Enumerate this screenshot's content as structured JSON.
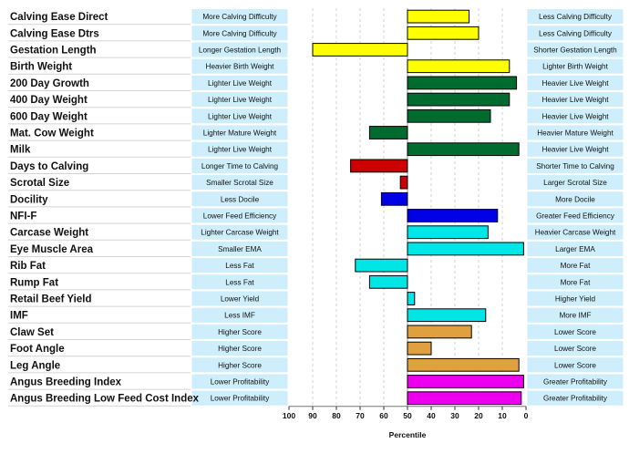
{
  "chart_data": {
    "type": "bar",
    "orientation": "horizontal",
    "xlabel": "Percentile",
    "xlim": [
      100,
      0
    ],
    "x_ticks": [
      "100",
      "90",
      "80",
      "70",
      "60",
      "50",
      "40",
      "30",
      "20",
      "10",
      "0"
    ],
    "baseline": 50,
    "grid": true,
    "rows": [
      {
        "trait": "Calving Ease Direct",
        "left": "More Calving Difficulty",
        "right": "Less Calving Difficulty",
        "value": 24,
        "color": "#ffff00"
      },
      {
        "trait": "Calving Ease Dtrs",
        "left": "More Calving Difficulty",
        "right": "Less Calving Difficulty",
        "value": 20,
        "color": "#ffff00"
      },
      {
        "trait": "Gestation Length",
        "left": "Longer Gestation Length",
        "right": "Shorter Gestation Length",
        "value": 90,
        "color": "#ffff00"
      },
      {
        "trait": "Birth Weight",
        "left": "Heavier Birth Weight",
        "right": "Lighter Birth Weight",
        "value": 7,
        "color": "#ffff00"
      },
      {
        "trait": "200 Day Growth",
        "left": "Lighter Live Weight",
        "right": "Heavier Live Weight",
        "value": 4,
        "color": "#006b2f"
      },
      {
        "trait": "400 Day Weight",
        "left": "Lighter Live Weight",
        "right": "Heavier Live Weight",
        "value": 7,
        "color": "#006b2f"
      },
      {
        "trait": "600 Day Weight",
        "left": "Lighter Live Weight",
        "right": "Heavier Live Weight",
        "value": 15,
        "color": "#006b2f"
      },
      {
        "trait": "Mat. Cow Weight",
        "left": "Lighter Mature Weight",
        "right": "Heavier Mature Weight",
        "value": 66,
        "color": "#006b2f"
      },
      {
        "trait": "Milk",
        "left": "Lighter Live Weight",
        "right": "Heavier Live Weight",
        "value": 3,
        "color": "#006b2f"
      },
      {
        "trait": "Days to Calving",
        "left": "Longer Time to Calving",
        "right": "Shorter Time to Calving",
        "value": 74,
        "color": "#cc0000"
      },
      {
        "trait": "Scrotal Size",
        "left": "Smaller Scrotal Size",
        "right": "Larger Scrotal Size",
        "value": 53,
        "color": "#cc0000"
      },
      {
        "trait": "Docility",
        "left": "Less Docile",
        "right": "More Docile",
        "value": 61,
        "color": "#0000e6"
      },
      {
        "trait": "NFI-F",
        "left": "Lower Feed Efficiency",
        "right": "Greater Feed Efficiency",
        "value": 12,
        "color": "#0000e6"
      },
      {
        "trait": "Carcase Weight",
        "left": "Lighter Carcase Weight",
        "right": "Heavier Carcase Weight",
        "value": 16,
        "color": "#00e6e6"
      },
      {
        "trait": "Eye Muscle Area",
        "left": "Smaller EMA",
        "right": "Larger EMA",
        "value": 1,
        "color": "#00e6e6"
      },
      {
        "trait": "Rib Fat",
        "left": "Less Fat",
        "right": "More Fat",
        "value": 72,
        "color": "#00e6e6"
      },
      {
        "trait": "Rump Fat",
        "left": "Less Fat",
        "right": "More Fat",
        "value": 66,
        "color": "#00e6e6"
      },
      {
        "trait": "Retail Beef Yield",
        "left": "Lower Yield",
        "right": "Higher Yield",
        "value": 47,
        "color": "#00e6e6"
      },
      {
        "trait": "IMF",
        "left": "Less IMF",
        "right": "More IMF",
        "value": 17,
        "color": "#00e6e6"
      },
      {
        "trait": "Claw Set",
        "left": "Higher Score",
        "right": "Lower Score",
        "value": 23,
        "color": "#e0a040"
      },
      {
        "trait": "Foot Angle",
        "left": "Higher Score",
        "right": "Lower Score",
        "value": 40,
        "color": "#e0a040"
      },
      {
        "trait": "Leg Angle",
        "left": "Higher Score",
        "right": "Lower Score",
        "value": 3,
        "color": "#e0a040"
      },
      {
        "trait": "Angus Breeding Index",
        "left": "Lower Profitability",
        "right": "Greater Profitability",
        "value": 1,
        "color": "#ee00ee"
      },
      {
        "trait": "Angus Breeding Low Feed Cost Index",
        "left": "Lower Profitability",
        "right": "Greater Profitability",
        "value": 2,
        "color": "#ee00ee"
      }
    ]
  }
}
